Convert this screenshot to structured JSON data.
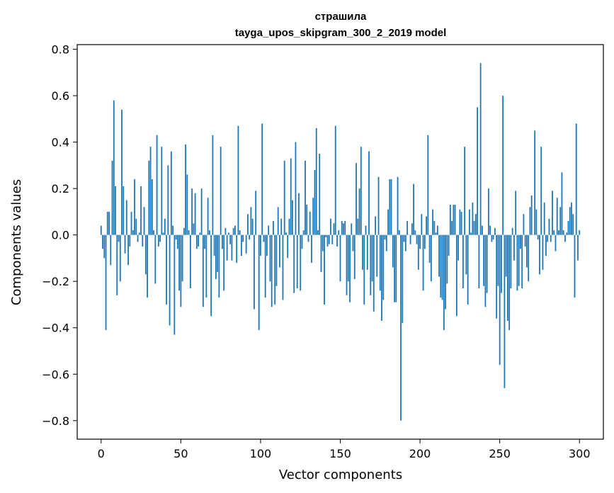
{
  "chart_data": {
    "type": "bar",
    "title": "страшила",
    "subtitle": "tayga_upos_skipgram_300_2_2019 model",
    "xlabel": "Vector components",
    "ylabel": "Components values",
    "xlim": [
      -15,
      315
    ],
    "ylim": [
      -0.88,
      0.82
    ],
    "xticks": [
      0,
      50,
      100,
      150,
      200,
      250,
      300
    ],
    "yticks": [
      0.8,
      0.6,
      0.4,
      0.2,
      0.0,
      -0.2,
      -0.4,
      -0.6,
      -0.8
    ],
    "ytick_labels": [
      "0.8",
      "0.6",
      "0.4",
      "0.2",
      "0.0",
      "−0.2",
      "−0.4",
      "−0.6",
      "−0.8"
    ],
    "bar_color": "#1f77b4",
    "values": [
      0.04,
      -0.06,
      -0.1,
      -0.41,
      0.1,
      0.1,
      -0.13,
      0.32,
      0.58,
      0.21,
      -0.26,
      -0.03,
      -0.2,
      0.54,
      0.21,
      -0.08,
      0.15,
      -0.13,
      -0.05,
      0.1,
      0.02,
      0.24,
      0.07,
      -0.03,
      0.01,
      0.21,
      -0.05,
      0.12,
      -0.17,
      -0.27,
      0.32,
      0.38,
      0.24,
      0.02,
      -0.21,
      0.43,
      -0.05,
      -0.03,
      0.38,
      0.01,
      0.07,
      -0.3,
      0.3,
      -0.39,
      0.36,
      0.04,
      -0.43,
      -0.02,
      -0.06,
      -0.24,
      -0.31,
      -0.2,
      0.03,
      0.39,
      0.26,
      0.02,
      -0.23,
      0.2,
      0.05,
      0.18,
      -0.06,
      -0.05,
      0.01,
      0.2,
      -0.31,
      -0.06,
      -0.27,
      0.16,
      0.02,
      -0.35,
      0.43,
      -0.09,
      -0.19,
      -0.16,
      -0.27,
      0.38,
      -0.06,
      -0.24,
      0.03,
      -0.11,
      0.01,
      -0.04,
      -0.11,
      0.03,
      0.04,
      -0.12,
      0.47,
      0.02,
      -0.09,
      -0.03,
      0.0,
      -0.08,
      0.09,
      -0.02,
      0.12,
      0.07,
      -0.32,
      0.19,
      0.0,
      -0.41,
      -0.09,
      0.48,
      -0.03,
      -0.27,
      -0.09,
      0.04,
      -0.2,
      -0.31,
      0.06,
      -0.3,
      -0.22,
      0.12,
      -0.14,
      0.07,
      -0.28,
      0.32,
      0.01,
      -0.1,
      0.07,
      0.33,
      0.15,
      -0.25,
      0.4,
      -0.23,
      0.18,
      -0.24,
      -0.06,
      0.02,
      0.32,
      0.13,
      -0.03,
      0.1,
      -0.12,
      0.16,
      0.28,
      0.46,
      0.02,
      0.35,
      -0.16,
      -0.07,
      -0.3,
      -0.01,
      -0.05,
      -0.04,
      0.07,
      -0.04,
      0.05,
      0.47,
      -0.05,
      0.02,
      -0.2,
      0.06,
      0.05,
      0.06,
      -0.26,
      -0.2,
      -0.29,
      0.05,
      -0.07,
      -0.19,
      0.31,
      0.07,
      0.2,
      0.38,
      -0.15,
      -0.3,
      0.04,
      -0.15,
      0.36,
      -0.26,
      -0.2,
      -0.33,
      0.08,
      -0.18,
      0.25,
      -0.24,
      -0.37,
      -0.28,
      -0.02,
      -0.07,
      0.11,
      0.24,
      0.24,
      -0.14,
      -0.29,
      -0.29,
      0.25,
      0.02,
      -0.8,
      -0.38,
      -0.03,
      -0.07,
      0.06,
      0.0,
      -0.04,
      0.05,
      0.22,
      0.02,
      -0.04,
      -0.15,
      -0.06,
      0.09,
      -0.24,
      -0.06,
      0.08,
      0.43,
      -0.12,
      -0.2,
      0.11,
      0.06,
      0.01,
      0.04,
      -0.18,
      -0.27,
      -0.28,
      -0.41,
      -0.32,
      -0.21,
      -0.09,
      0.13,
      0.06,
      0.13,
      0.13,
      -0.35,
      -0.11,
      0.11,
      0.1,
      -0.23,
      0.38,
      -0.17,
      -0.3,
      0.11,
      0.01,
      0.14,
      0.06,
      0.09,
      0.55,
      -0.23,
      0.74,
      0.04,
      -0.22,
      -0.31,
      -0.25,
      0.2,
      0.04,
      -0.03,
      -0.02,
      0.03,
      -0.36,
      -0.22,
      -0.56,
      -0.25,
      0.6,
      -0.66,
      -0.18,
      -0.37,
      -0.41,
      -0.23,
      0.03,
      -0.11,
      0.19,
      -0.24,
      -0.22,
      -0.06,
      -0.23,
      0.09,
      -0.05,
      -0.14,
      -0.2,
      0.12,
      0.17,
      0.0,
      0.45,
      0.11,
      -0.02,
      -0.17,
      0.38,
      -0.15,
      0.14,
      -0.09,
      -0.03,
      0.07,
      -0.03,
      0.19,
      0.02,
      -0.07,
      0.16,
      0.02,
      0.12,
      0.27,
      0.02,
      -0.03,
      0.01,
      0.06,
      0.12,
      0.14,
      0.09,
      -0.27,
      0.48,
      -0.11,
      0.02
    ]
  }
}
